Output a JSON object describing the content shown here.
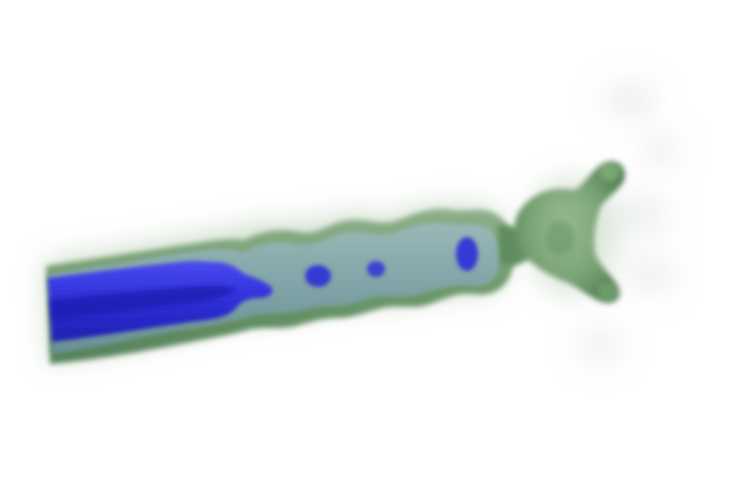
{
  "scene": {
    "description_colors": {
      "background": "#ffffff",
      "outer_shell": "#6f9a6c",
      "outer_shell_dark": "#4f7a51",
      "translucent_body": "#7fa3a6",
      "inner_core": "#2f2fd8",
      "inner_core_dark": "#1818a8",
      "haze": "#cfd6d3"
    },
    "icons": {
      "structure": "volume-rendered-tubular-structure-icon",
      "head": "forked-head-icon"
    }
  }
}
